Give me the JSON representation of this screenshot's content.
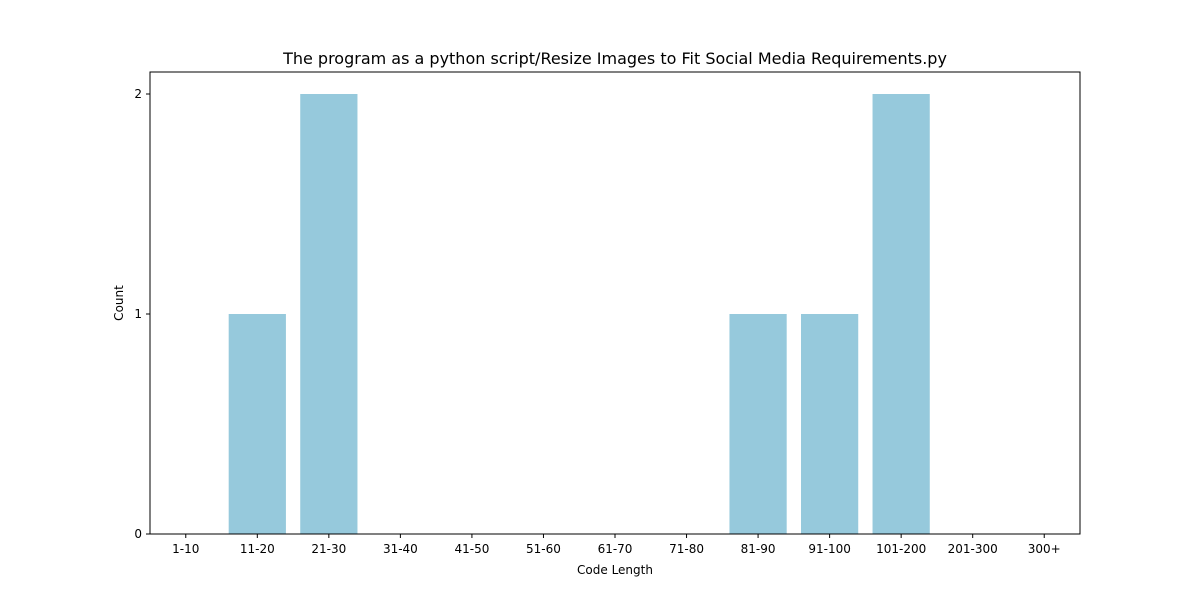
{
  "chart_data": {
    "type": "bar",
    "title": "The program as a python script/Resize Images to Fit Social Media Requirements.py",
    "xlabel": "Code Length",
    "ylabel": "Count",
    "categories": [
      "1-10",
      "11-20",
      "21-30",
      "31-40",
      "41-50",
      "51-60",
      "61-70",
      "71-80",
      "81-90",
      "91-100",
      "101-200",
      "201-300",
      "300+"
    ],
    "values": [
      0,
      1,
      2,
      0,
      0,
      0,
      0,
      0,
      1,
      1,
      2,
      0,
      0
    ],
    "yticks": [
      0,
      1,
      2
    ],
    "ylim": [
      0,
      2.1
    ],
    "bar_color": "#96c9dc",
    "grid": false,
    "legend": "none"
  }
}
